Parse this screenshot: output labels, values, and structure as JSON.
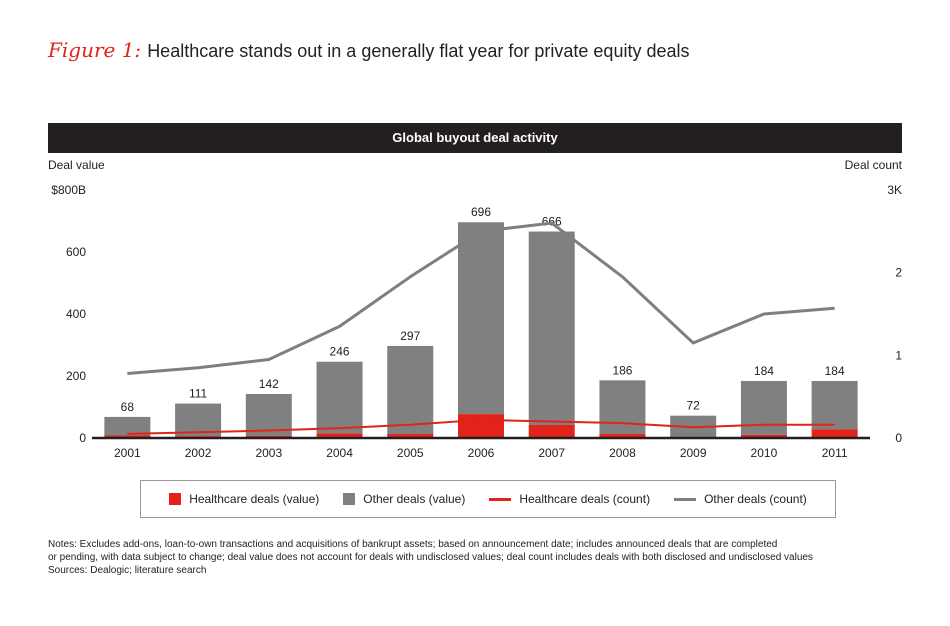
{
  "figure": {
    "label": "Figure 1:",
    "title": "Healthcare stands out in a generally flat year for private equity deals"
  },
  "chart_data": {
    "type": "bar",
    "title": "Global buyout deal activity",
    "categories": [
      "2001",
      "2002",
      "2003",
      "2004",
      "2005",
      "2006",
      "2007",
      "2008",
      "2009",
      "2010",
      "2011"
    ],
    "left_axis": {
      "title": "Deal value",
      "range": [
        0,
        800
      ],
      "ticks": [
        {
          "value": 0,
          "label": "0"
        },
        {
          "value": 200,
          "label": "200"
        },
        {
          "value": 400,
          "label": "400"
        },
        {
          "value": 600,
          "label": "600"
        },
        {
          "value": 800,
          "label": "$800B"
        }
      ]
    },
    "right_axis": {
      "title": "Deal count",
      "range": [
        0,
        3
      ],
      "ticks": [
        {
          "value": 0,
          "label": "0"
        },
        {
          "value": 1,
          "label": "1"
        },
        {
          "value": 2,
          "label": "2"
        },
        {
          "value": 3,
          "label": "3K"
        }
      ]
    },
    "bar_totals": [
      68,
      111,
      142,
      246,
      297,
      696,
      666,
      186,
      72,
      184,
      184
    ],
    "bar_total_labels": [
      "68",
      "111",
      "142",
      "246",
      "297",
      "696",
      "666",
      "186",
      "72",
      "184",
      "184"
    ],
    "series": [
      {
        "name": "Healthcare deals (value)",
        "kind": "bar",
        "axis": "left",
        "color": "#e2231a",
        "values": [
          8,
          6,
          7,
          15,
          13,
          77,
          42,
          13,
          3,
          10,
          28
        ]
      },
      {
        "name": "Other deals (value)",
        "kind": "bar",
        "axis": "left",
        "color": "#808080",
        "values": [
          60,
          105,
          135,
          231,
          284,
          619,
          624,
          173,
          69,
          174,
          156
        ]
      },
      {
        "name": "Healthcare deals (count)",
        "kind": "line",
        "axis": "right",
        "color": "#e2231a",
        "values": [
          0.05,
          0.07,
          0.09,
          0.12,
          0.16,
          0.22,
          0.2,
          0.18,
          0.13,
          0.16,
          0.16
        ]
      },
      {
        "name": "Other deals (count)",
        "kind": "line",
        "axis": "right",
        "color": "#7f7f7f",
        "values": [
          0.78,
          0.85,
          0.95,
          1.35,
          1.95,
          2.5,
          2.6,
          1.95,
          1.15,
          1.5,
          1.57
        ]
      }
    ],
    "legend": "bottom"
  },
  "notes": {
    "lines": [
      "Notes: Excludes add-ons, loan-to-own transactions and acquisitions of bankrupt assets; based on announcement date; includes announced deals that are completed",
      "or pending, with data subject to change; deal value does not account for deals with undisclosed values; deal count includes deals with both disclosed and undisclosed values",
      "Sources: Dealogic; literature search"
    ]
  }
}
